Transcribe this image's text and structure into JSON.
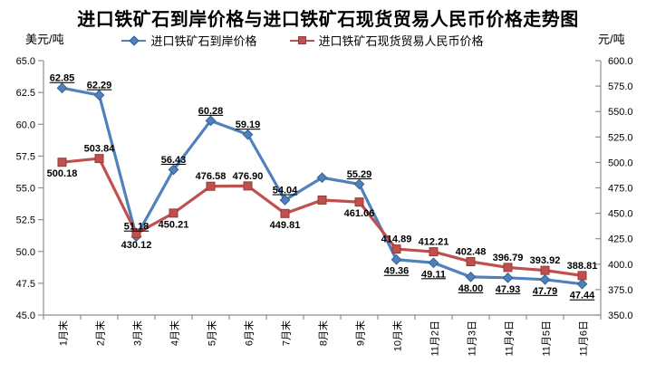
{
  "title": "进口铁矿石到岸价格与进口铁矿石现货贸易人民币价格走势图",
  "chart_data": {
    "type": "line",
    "title": "进口铁矿石到岸价格与进口铁矿石现货贸易人民币价格走势图",
    "grid": false,
    "legend_position": "top",
    "categories": [
      "1月末",
      "2月末",
      "3月末",
      "4月末",
      "5月末",
      "6月末",
      "7月末",
      "8月末",
      "9月末",
      "10月末",
      "11月2日",
      "11月3日",
      "11月4日",
      "11月5日",
      "11月6日"
    ],
    "left_axis": {
      "unit": "美元/吨",
      "min": 45.0,
      "max": 65.0,
      "step": 2.5,
      "tick_labels": [
        "65.0",
        "62.5",
        "60.0",
        "57.5",
        "55.0",
        "52.5",
        "50.0",
        "47.5",
        "45.0"
      ]
    },
    "right_axis": {
      "unit": "元/吨",
      "min": 350.0,
      "max": 600.0,
      "step": 25.0,
      "tick_labels": [
        "600.0",
        "575.0",
        "550.0",
        "525.0",
        "500.0",
        "475.0",
        "450.0",
        "425.0",
        "400.0",
        "375.0",
        "350.0"
      ]
    },
    "series": [
      {
        "name": "进口铁矿石到岸价格",
        "axis": "left",
        "marker": "diamond",
        "color": "#4F81BD",
        "marker_stroke": "#35618F",
        "labels_underlined": true,
        "values": [
          62.85,
          62.29,
          51.18,
          56.43,
          60.28,
          59.19,
          54.04,
          55.8,
          55.29,
          49.36,
          49.11,
          48.0,
          47.93,
          47.79,
          47.44
        ],
        "labels": [
          "62.85",
          "62.29",
          "51.18",
          "56.43",
          "60.28",
          "59.19",
          "54.04",
          "",
          "55.29",
          "49.36",
          "49.11",
          "48.00",
          "47.93",
          "47.79",
          "47.44"
        ],
        "label_positions": [
          "above",
          "above",
          "above",
          "above",
          "above",
          "above",
          "above",
          "none",
          "above",
          "below",
          "below",
          "below",
          "below",
          "below",
          "below"
        ]
      },
      {
        "name": "进口铁矿石现货贸易人民币价格",
        "axis": "right",
        "marker": "square",
        "color": "#C0504D",
        "marker_stroke": "#933B38",
        "labels_underlined": false,
        "values": [
          500.18,
          503.84,
          430.12,
          450.21,
          476.58,
          476.9,
          449.81,
          463.0,
          461.06,
          414.89,
          412.21,
          402.48,
          396.79,
          393.92,
          388.81
        ],
        "labels": [
          "500.18",
          "503.84",
          "430.12",
          "450.21",
          "476.58",
          "476.90",
          "449.81",
          "",
          "461.06",
          "414.89",
          "412.21",
          "402.48",
          "396.79",
          "393.92",
          "388.81"
        ],
        "label_positions": [
          "below",
          "above",
          "below",
          "below",
          "above",
          "above",
          "below",
          "none",
          "below",
          "above",
          "above",
          "above",
          "above",
          "above",
          "above"
        ]
      }
    ]
  }
}
